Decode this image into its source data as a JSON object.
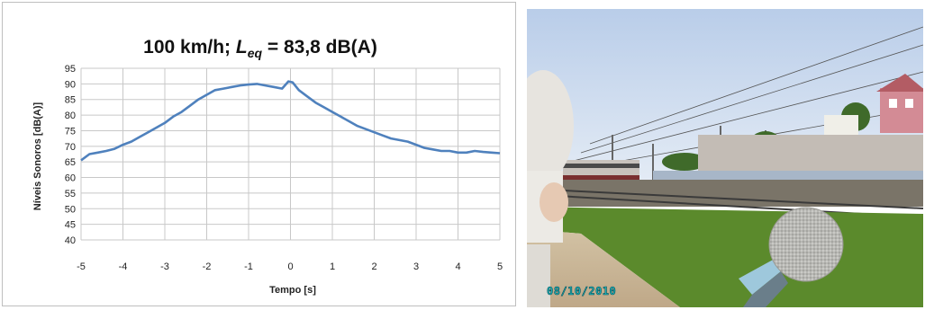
{
  "chart_data": {
    "type": "line",
    "title_main": "100 km/h; ",
    "title_var": "L",
    "title_sub": "eq",
    "title_rest": " = 83,8 dB(A)",
    "xlabel": "Tempo [s]",
    "ylabel": "Níveis Sonoros [dB(A)]",
    "xlim": [
      -5,
      5
    ],
    "ylim": [
      40,
      95
    ],
    "x_ticks": [
      "-5",
      "-4",
      "-3",
      "-2",
      "-1",
      "0",
      "1",
      "2",
      "3",
      "4",
      "5"
    ],
    "y_ticks": [
      "95",
      "90",
      "85",
      "80",
      "75",
      "70",
      "65",
      "60",
      "55",
      "50",
      "45",
      "40"
    ],
    "grid": true,
    "line_color": "#4f81bd",
    "series": [
      {
        "x": [
          -5,
          -4.8,
          -4.6,
          -4.4,
          -4.2,
          -4.0,
          -3.8,
          -3.6,
          -3.4,
          -3.2,
          -3.0,
          -2.8,
          -2.6,
          -2.4,
          -2.2,
          -2.0,
          -1.8,
          -1.6,
          -1.4,
          -1.2,
          -1.0,
          -0.8,
          -0.6,
          -0.4,
          -0.2,
          -0.05,
          0.05,
          0.2,
          0.4,
          0.6,
          0.8,
          1.0,
          1.2,
          1.4,
          1.6,
          1.8,
          2.0,
          2.2,
          2.4,
          2.6,
          2.8,
          3.0,
          3.2,
          3.4,
          3.6,
          3.8,
          4.0,
          4.2,
          4.4,
          4.6,
          4.8,
          5.0
        ],
        "y": [
          65.5,
          67.5,
          68.0,
          68.5,
          69.2,
          70.5,
          71.5,
          73.0,
          74.5,
          76.0,
          77.5,
          79.5,
          81.0,
          83.0,
          85.0,
          86.5,
          88.0,
          88.5,
          89.0,
          89.5,
          89.8,
          90.0,
          89.5,
          89.0,
          88.5,
          90.8,
          90.5,
          88.0,
          86.0,
          84.0,
          82.5,
          81.0,
          79.5,
          78.0,
          76.5,
          75.5,
          74.5,
          73.5,
          72.5,
          72.0,
          71.5,
          70.5,
          69.5,
          69.0,
          68.5,
          68.5,
          68.0,
          68.0,
          68.5,
          68.2,
          68.0,
          67.8
        ]
      }
    ]
  },
  "photo": {
    "date_stamp": "08/10/2010",
    "sky_color": "#c9d8ee",
    "ground_color": "#c9b79a",
    "grass_color": "#5b8a2c"
  }
}
